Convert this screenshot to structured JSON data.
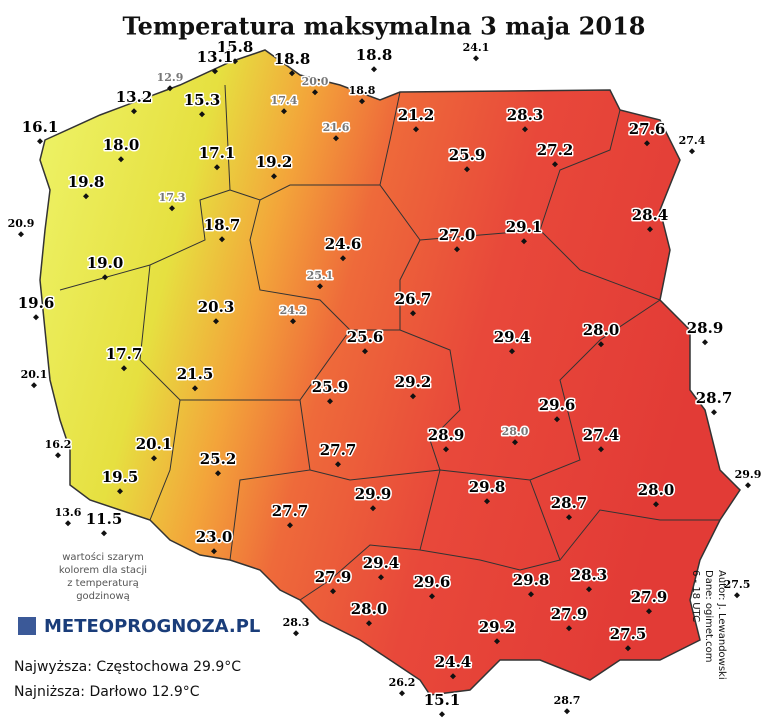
{
  "title": "Temperatura maksymalna 3 maja 2018",
  "stations": [
    {
      "value": "15.8",
      "color": "#000"
    },
    {
      "value": "13.1",
      "color": "#000"
    },
    {
      "value": "12.9",
      "color": "#777"
    },
    {
      "value": "18.8",
      "color": "#000"
    },
    {
      "value": "20.0",
      "color": "#777"
    },
    {
      "value": "17.4",
      "color": "#777"
    },
    {
      "value": "18.8",
      "color": "#000"
    },
    {
      "value": "18.8",
      "color": "#000"
    },
    {
      "value": "24.1",
      "color": "#000"
    },
    {
      "value": "13.2",
      "color": "#000"
    },
    {
      "value": "15.3",
      "color": "#000"
    },
    {
      "value": "16.1",
      "color": "#000"
    },
    {
      "value": "21.6",
      "color": "#777"
    },
    {
      "value": "21.2",
      "color": "#000"
    },
    {
      "value": "28.3",
      "color": "#000"
    },
    {
      "value": "27.6",
      "color": "#000"
    },
    {
      "value": "27.4",
      "color": "#000"
    },
    {
      "value": "18.0",
      "color": "#000"
    },
    {
      "value": "17.1",
      "color": "#000"
    },
    {
      "value": "25.9",
      "color": "#000"
    },
    {
      "value": "27.2",
      "color": "#000"
    },
    {
      "value": "19.8",
      "color": "#000"
    },
    {
      "value": "19.2",
      "color": "#000"
    },
    {
      "value": "17.3",
      "color": "#777"
    },
    {
      "value": "20.9",
      "color": "#000"
    },
    {
      "value": "28.4",
      "color": "#000"
    },
    {
      "value": "18.7",
      "color": "#000"
    },
    {
      "value": "24.6",
      "color": "#000"
    },
    {
      "value": "27.0",
      "color": "#000"
    },
    {
      "value": "29.1",
      "color": "#000"
    },
    {
      "value": "19.0",
      "color": "#000"
    },
    {
      "value": "25.1",
      "color": "#777"
    },
    {
      "value": "19.6",
      "color": "#000"
    },
    {
      "value": "20.3",
      "color": "#000"
    },
    {
      "value": "24.2",
      "color": "#777"
    },
    {
      "value": "26.7",
      "color": "#000"
    },
    {
      "value": "28.0",
      "color": "#000"
    },
    {
      "value": "28.9",
      "color": "#000"
    },
    {
      "value": "29.4",
      "color": "#000"
    },
    {
      "value": "25.6",
      "color": "#000"
    },
    {
      "value": "17.7",
      "color": "#000"
    },
    {
      "value": "20.1",
      "color": "#000"
    },
    {
      "value": "21.5",
      "color": "#000"
    },
    {
      "value": "29.2",
      "color": "#000"
    },
    {
      "value": "25.9",
      "color": "#000"
    },
    {
      "value": "28.7",
      "color": "#000"
    },
    {
      "value": "29.6",
      "color": "#000"
    },
    {
      "value": "16.2",
      "color": "#000"
    },
    {
      "value": "28.9",
      "color": "#000"
    },
    {
      "value": "28.0",
      "color": "#777"
    },
    {
      "value": "20.1",
      "color": "#000"
    },
    {
      "value": "27.4",
      "color": "#000"
    },
    {
      "value": "27.7",
      "color": "#000"
    },
    {
      "value": "25.2",
      "color": "#000"
    },
    {
      "value": "29.9",
      "color": "#000"
    },
    {
      "value": "19.5",
      "color": "#000"
    },
    {
      "value": "29.8",
      "color": "#000"
    },
    {
      "value": "29.9",
      "color": "#000"
    },
    {
      "value": "28.7",
      "color": "#000"
    },
    {
      "value": "28.0",
      "color": "#000"
    },
    {
      "value": "13.6",
      "color": "#000"
    },
    {
      "value": "11.5",
      "color": "#000"
    },
    {
      "value": "27.7",
      "color": "#000"
    },
    {
      "value": "23.0",
      "color": "#000"
    },
    {
      "value": "29.4",
      "color": "#000"
    },
    {
      "value": "27.9",
      "color": "#000"
    },
    {
      "value": "29.6",
      "color": "#000"
    },
    {
      "value": "29.8",
      "color": "#000"
    },
    {
      "value": "28.3",
      "color": "#000"
    },
    {
      "value": "27.5",
      "color": "#000"
    },
    {
      "value": "27.9",
      "color": "#000"
    },
    {
      "value": "28.0",
      "color": "#000"
    },
    {
      "value": "27.9",
      "color": "#000"
    },
    {
      "value": "28.3",
      "color": "#000"
    },
    {
      "value": "29.2",
      "color": "#000"
    },
    {
      "value": "27.5",
      "color": "#000"
    },
    {
      "value": "24.4",
      "color": "#000"
    },
    {
      "value": "26.2",
      "color": "#000"
    },
    {
      "value": "15.1",
      "color": "#000"
    },
    {
      "value": "28.7",
      "color": "#000"
    }
  ],
  "note": [
    "wartości szarym",
    "kolorem dla stacji",
    "z temperaturą",
    "godzinową"
  ],
  "logo": "METEOPROGNOZA.PL",
  "highest": "Najwyższa: Częstochowa 29.9°C",
  "lowest": "Najniższa: Darłowo 12.9°C",
  "credits": [
    "Autor: J. Lewandowski",
    "Dane: ogimet.com",
    "6 - 18 UTC"
  ]
}
